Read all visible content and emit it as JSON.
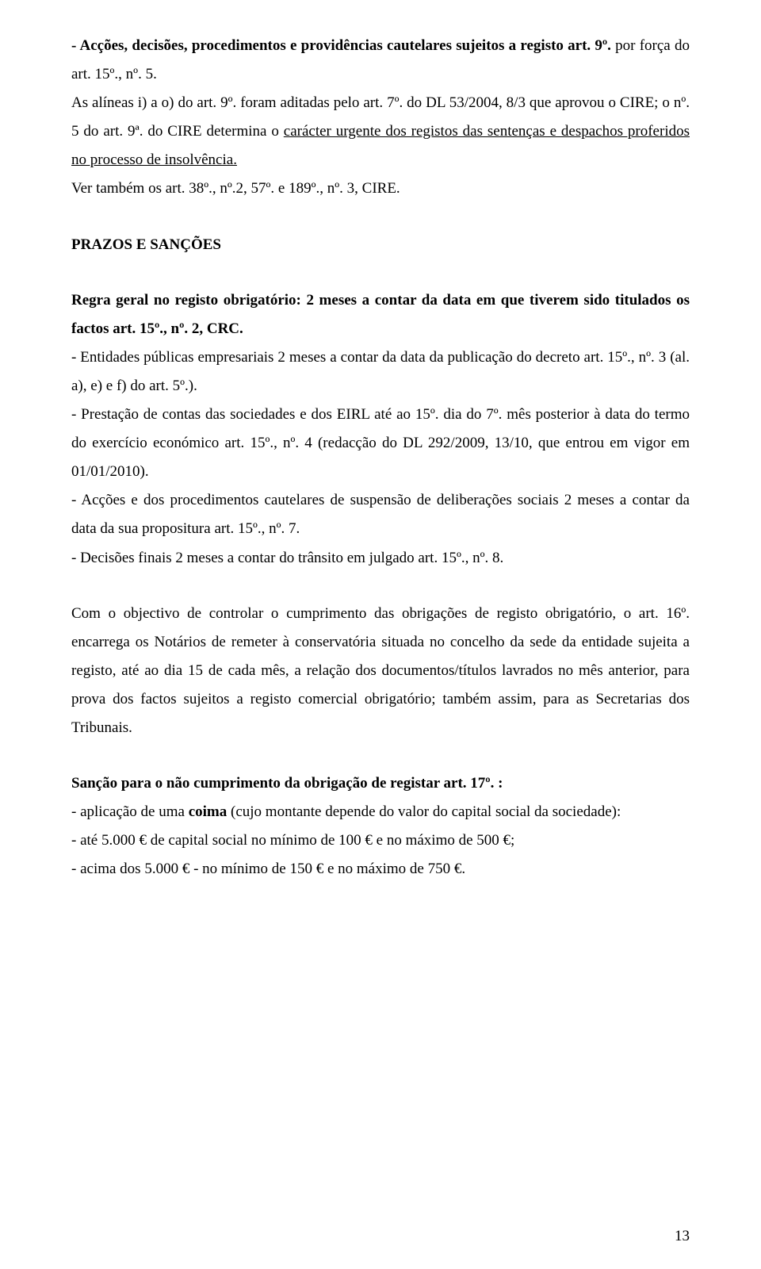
{
  "p1_a": "- Acções, decisões, procedimentos e providências cautelares sujeitos a registo art. 9º.",
  "p1_b": " por força do art. 15º., nº. 5.",
  "p2": "As alíneas i) a o) do art. 9º. foram aditadas pelo art. 7º. do DL 53/2004, 8/3 que aprovou o CIRE; o nº. 5 do art. 9ª. do CIRE determina o ",
  "p2_u": "carácter urgente dos registos das sentenças e despachos proferidos no processo de insolvência.",
  "p3": "Ver também os art. 38º., nº.2, 57º. e 189º., nº. 3, CIRE.",
  "h1": "PRAZOS E SANÇÕES",
  "p4_a": "Regra geral no registo obrigatório: 2 meses a contar da data em que tiverem sido titulados os factos art. 15º., nº. 2, CRC.",
  "p5": "- Entidades públicas empresariais 2 meses a contar da data da publicação do decreto art. 15º., nº. 3 (al. a), e) e f) do art. 5º.).",
  "p6": "- Prestação de contas das sociedades e dos EIRL até ao 15º. dia do 7º. mês posterior à data do termo do exercício económico art. 15º., nº. 4 (redacção do DL 292/2009, 13/10, que entrou em vigor em 01/01/2010).",
  "p7": "- Acções e dos procedimentos cautelares de suspensão de deliberações sociais 2 meses a contar da data da sua propositura art. 15º., nº. 7.",
  "p8": "- Decisões finais 2 meses a contar do trânsito em julgado art. 15º., nº. 8.",
  "p9": "Com o objectivo de controlar o cumprimento das obrigações de registo obrigatório, o art. 16º. encarrega os Notários de remeter à conservatória situada no concelho da sede da entidade sujeita a registo, até ao dia 15 de cada mês, a relação dos documentos/títulos lavrados no mês anterior, para prova dos factos sujeitos a registo comercial obrigatório; também assim, para as Secretarias dos Tribunais.",
  "h2": "Sanção para o não cumprimento da obrigação de registar art. 17º. :",
  "p10_a": "- aplicação de uma ",
  "p10_b": "coima",
  "p10_c": " (cujo montante depende do valor do capital social da sociedade):",
  "p11": "- até 5.000 € de capital social no mínimo de 100 € e no máximo de 500 €;",
  "p12": "- acima dos 5.000 € - no mínimo de 150 € e no máximo de 750 €.",
  "page_num": "13"
}
